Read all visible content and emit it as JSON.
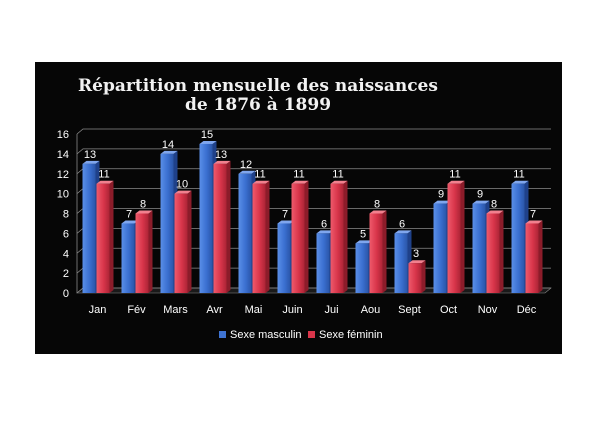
{
  "chart_data": {
    "type": "bar",
    "title_line1": "Répartition mensuelle des naissances",
    "title_line2": "de 1876 à 1899",
    "categories": [
      "Jan",
      "Fév",
      "Mars",
      "Avr",
      "Mai",
      "Juin",
      "Jui",
      "Aou",
      "Sept",
      "Oct",
      "Nov",
      "Déc"
    ],
    "series": [
      {
        "name": "Sexe masculin",
        "values": [
          13,
          7,
          14,
          15,
          12,
          7,
          6,
          5,
          6,
          9,
          9,
          11
        ],
        "color": "#3e73d2"
      },
      {
        "name": "Sexe féminin",
        "values": [
          11,
          8,
          10,
          13,
          11,
          11,
          11,
          8,
          3,
          11,
          8,
          7
        ],
        "color": "#d9354a"
      }
    ],
    "y_ticks": [
      "0",
      "2",
      "4",
      "6",
      "8",
      "10",
      "12",
      "14",
      "16"
    ],
    "ylim": [
      0,
      16
    ],
    "grid": true,
    "legend_position": "bottom",
    "background_color": "#060606",
    "grid_color": "#8a8a8a"
  }
}
